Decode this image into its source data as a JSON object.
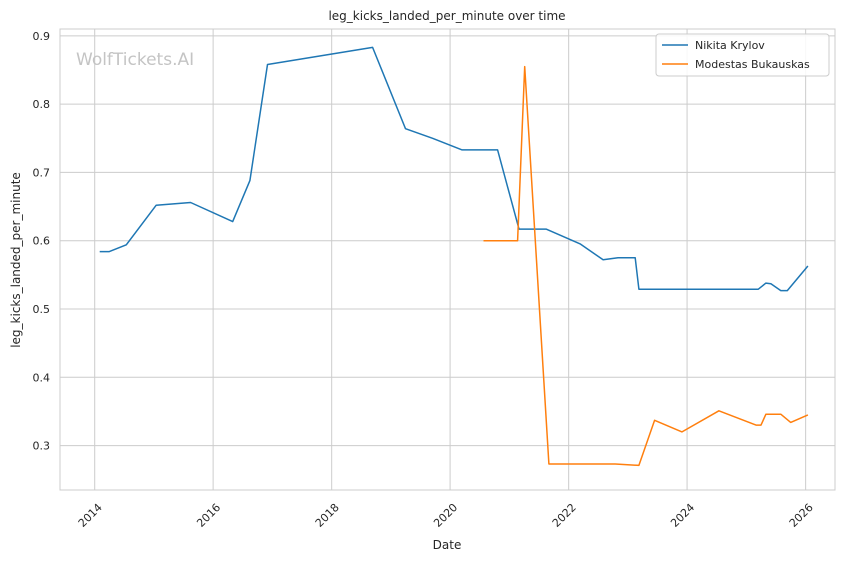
{
  "chart_data": {
    "type": "line",
    "title": "leg_kicks_landed_per_minute over time",
    "xlabel": "Date",
    "ylabel": "leg_kicks_landed_per_minute",
    "watermark": "WolfTickets.AI",
    "xlim": [
      "2013-06-01",
      "2026-07-01"
    ],
    "ylim": [
      0.235,
      0.91
    ],
    "x_ticks": [
      "2014",
      "2016",
      "2018",
      "2020",
      "2022",
      "2024",
      "2026"
    ],
    "y_ticks": [
      "0.3",
      "0.4",
      "0.5",
      "0.6",
      "0.7",
      "0.8",
      "0.9"
    ],
    "grid": true,
    "legend_position": "top-right",
    "series": [
      {
        "name": "Nikita Krylov",
        "color": "#1f77b4",
        "points": [
          {
            "x": "2014-02-01",
            "y": 0.584
          },
          {
            "x": "2014-04-01",
            "y": 0.584
          },
          {
            "x": "2014-07-15",
            "y": 0.594
          },
          {
            "x": "2015-01-15",
            "y": 0.652
          },
          {
            "x": "2015-08-15",
            "y": 0.656
          },
          {
            "x": "2016-05-01",
            "y": 0.628
          },
          {
            "x": "2016-08-15",
            "y": 0.688
          },
          {
            "x": "2016-12-01",
            "y": 0.858
          },
          {
            "x": "2018-09-10",
            "y": 0.883
          },
          {
            "x": "2019-04-01",
            "y": 0.764
          },
          {
            "x": "2019-09-15",
            "y": 0.75
          },
          {
            "x": "2020-03-15",
            "y": 0.733
          },
          {
            "x": "2020-10-20",
            "y": 0.733
          },
          {
            "x": "2021-03-01",
            "y": 0.617
          },
          {
            "x": "2021-08-15",
            "y": 0.617
          },
          {
            "x": "2022-03-15",
            "y": 0.595
          },
          {
            "x": "2022-08-01",
            "y": 0.572
          },
          {
            "x": "2022-11-01",
            "y": 0.575
          },
          {
            "x": "2023-02-15",
            "y": 0.575
          },
          {
            "x": "2023-03-10",
            "y": 0.529
          },
          {
            "x": "2025-03-15",
            "y": 0.529
          },
          {
            "x": "2025-05-01",
            "y": 0.538
          },
          {
            "x": "2025-06-01",
            "y": 0.537
          },
          {
            "x": "2025-08-01",
            "y": 0.527
          },
          {
            "x": "2025-09-10",
            "y": 0.527
          },
          {
            "x": "2026-01-15",
            "y": 0.563
          }
        ]
      },
      {
        "name": "Modestas Bukauskas",
        "color": "#ff7f0e",
        "points": [
          {
            "x": "2020-07-25",
            "y": 0.6
          },
          {
            "x": "2021-02-20",
            "y": 0.6
          },
          {
            "x": "2021-04-05",
            "y": 0.855
          },
          {
            "x": "2021-09-01",
            "y": 0.273
          },
          {
            "x": "2022-10-15",
            "y": 0.273
          },
          {
            "x": "2023-03-10",
            "y": 0.271
          },
          {
            "x": "2023-06-15",
            "y": 0.337
          },
          {
            "x": "2023-12-01",
            "y": 0.32
          },
          {
            "x": "2024-07-15",
            "y": 0.351
          },
          {
            "x": "2025-03-01",
            "y": 0.33
          },
          {
            "x": "2025-04-01",
            "y": 0.33
          },
          {
            "x": "2025-05-01",
            "y": 0.346
          },
          {
            "x": "2025-08-01",
            "y": 0.346
          },
          {
            "x": "2025-10-01",
            "y": 0.334
          },
          {
            "x": "2026-01-15",
            "y": 0.345
          }
        ]
      }
    ]
  }
}
